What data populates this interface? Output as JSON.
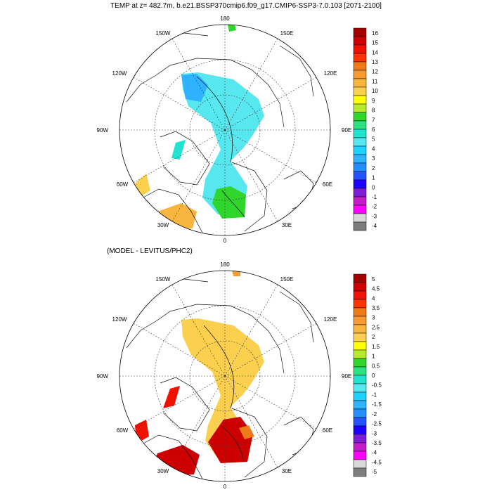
{
  "title": "TEMP at z= 482.7m, b.e21.BSSP370cmip6.f09_g17.CMIP6-SSP3-7.0.103 [2071-2100]",
  "lower_title": "(MODEL - LEVITUS/PHC2)",
  "longitude_labels": {
    "top": "180",
    "bottom": "0",
    "left": "90W",
    "right": "90E",
    "upper_left": "150W",
    "upper_right": "150E",
    "mid_upper_left": "120W",
    "mid_upper_right": "120E",
    "lower_left": "60W",
    "lower_right": "60E",
    "bottom_left": "30W",
    "bottom_right": "30E"
  },
  "colorbar_top": {
    "labels": [
      "16",
      "15",
      "14",
      "13",
      "12",
      "11",
      "10",
      "9",
      "8",
      "7",
      "6",
      "5",
      "4",
      "3",
      "2",
      "1",
      "0",
      "-1",
      "-2",
      "-3",
      "-4"
    ],
    "colors": [
      "#a50000",
      "#cc0000",
      "#ee1100",
      "#ff3300",
      "#ef7a1a",
      "#f59b32",
      "#f8b640",
      "#fcd04f",
      "#ffff00",
      "#b7ea2f",
      "#31d62c",
      "#2ee27f",
      "#22e3d0",
      "#57e7ee",
      "#1ed1ff",
      "#2fb2ff",
      "#238fff",
      "#2453ff",
      "#1f00ff",
      "#7d1dd5",
      "#c11ec8",
      "#ff00ff",
      "#d9d9d9",
      "#7d7d7d"
    ]
  },
  "colorbar_bottom": {
    "labels": [
      "5",
      "4.5",
      "4",
      "3.5",
      "3",
      "2.5",
      "2",
      "1.5",
      "1",
      "0.5",
      "0",
      "-0.5",
      "-1",
      "-1.5",
      "-2",
      "-2.5",
      "-3",
      "-3.5",
      "-4",
      "-4.5",
      "-5"
    ],
    "colors": [
      "#a50000",
      "#cc0000",
      "#ee1100",
      "#ff3300",
      "#ef7a1a",
      "#f59b32",
      "#f8b640",
      "#fcd04f",
      "#ffff00",
      "#b7ea2f",
      "#31d62c",
      "#2ee27f",
      "#22e3d0",
      "#57e7ee",
      "#1ed1ff",
      "#2fb2ff",
      "#238fff",
      "#2453ff",
      "#1f00ff",
      "#7d1dd5",
      "#c11ec8",
      "#ff00ff",
      "#d9d9d9",
      "#7d7d7d"
    ]
  }
}
